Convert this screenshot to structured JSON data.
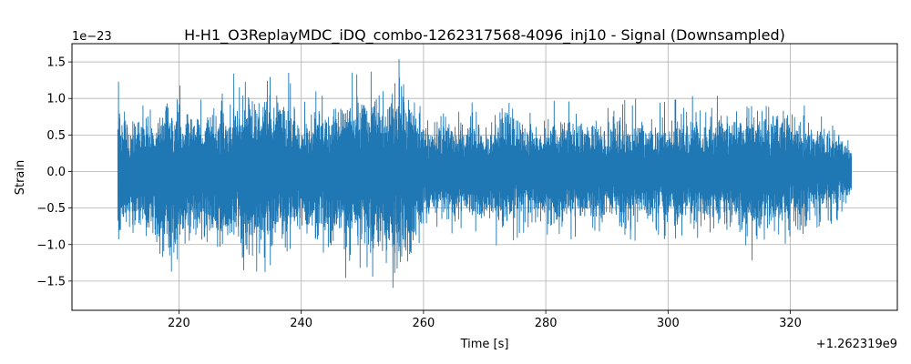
{
  "chart_data": {
    "type": "line",
    "title": "H-H1_O3ReplayMDC_iDQ_combo-1262317568-4096_inj10 - Signal (Downsampled)",
    "xlabel": "Time [s]",
    "ylabel": "Strain",
    "x_offset_label": "+1.262319e9",
    "y_scale_label": "1e−23",
    "xlim": [
      202.5,
      337.5
    ],
    "ylim": [
      -1.9,
      1.75
    ],
    "x_ticks": [
      220,
      240,
      260,
      280,
      300,
      320
    ],
    "x_tick_labels": [
      "220",
      "240",
      "260",
      "280",
      "300",
      "320"
    ],
    "y_ticks": [
      -1.5,
      -1.0,
      -0.5,
      0.0,
      0.5,
      1.0,
      1.5
    ],
    "y_tick_labels": [
      "−1.5",
      "−1.0",
      "−0.5",
      "0.0",
      "0.5",
      "1.0",
      "1.5"
    ],
    "grid": true,
    "line_color": "#1f77b4",
    "series": [
      {
        "x_range": [
          210.0,
          330.0
        ],
        "envelope": {
          "x": [
            210,
            212,
            214,
            216,
            218,
            220,
            222,
            224,
            226,
            228,
            230,
            232,
            234,
            236,
            238,
            240,
            242,
            244,
            246,
            248,
            250,
            252,
            254,
            256,
            258,
            260,
            262,
            264,
            266,
            268,
            270,
            272,
            274,
            276,
            278,
            280,
            282,
            284,
            286,
            288,
            290,
            292,
            294,
            296,
            298,
            300,
            302,
            304,
            306,
            308,
            310,
            312,
            314,
            316,
            318,
            320,
            322,
            324,
            326,
            328,
            330
          ],
          "upper": [
            1.25,
            0.95,
            1.0,
            1.05,
            1.25,
            1.25,
            1.0,
            1.1,
            1.1,
            1.3,
            1.55,
            1.45,
            1.45,
            1.3,
            1.4,
            0.95,
            1.1,
            1.35,
            1.3,
            1.45,
            1.4,
            1.4,
            1.5,
            1.55,
            1.5,
            0.8,
            0.85,
            0.9,
            0.85,
            0.95,
            0.9,
            1.1,
            1.2,
            0.95,
            0.85,
            0.95,
            1.05,
            1.0,
            0.95,
            1.0,
            0.9,
            1.0,
            1.05,
            1.0,
            0.95,
            1.0,
            1.05,
            1.1,
            1.0,
            1.05,
            1.1,
            1.05,
            1.15,
            1.0,
            1.1,
            1.1,
            1.0,
            0.85,
            0.8,
            0.75,
            0.45
          ],
          "lower": [
            -1.25,
            -1.0,
            -1.1,
            -1.3,
            -1.75,
            -1.5,
            -1.2,
            -1.2,
            -1.3,
            -1.3,
            -1.35,
            -1.65,
            -1.4,
            -1.3,
            -1.25,
            -1.0,
            -1.2,
            -1.4,
            -1.3,
            -1.55,
            -1.5,
            -1.6,
            -1.5,
            -1.7,
            -1.55,
            -0.8,
            -0.85,
            -0.9,
            -0.85,
            -0.9,
            -0.95,
            -1.05,
            -1.0,
            -0.95,
            -0.9,
            -1.0,
            -1.0,
            -1.0,
            -0.95,
            -1.0,
            -0.95,
            -1.1,
            -0.95,
            -1.0,
            -1.05,
            -1.0,
            -1.0,
            -1.05,
            -1.05,
            -1.0,
            -1.0,
            -1.1,
            -1.25,
            -1.0,
            -1.2,
            -1.0,
            -0.95,
            -0.8,
            -0.75,
            -0.7,
            -0.5
          ]
        }
      }
    ]
  }
}
